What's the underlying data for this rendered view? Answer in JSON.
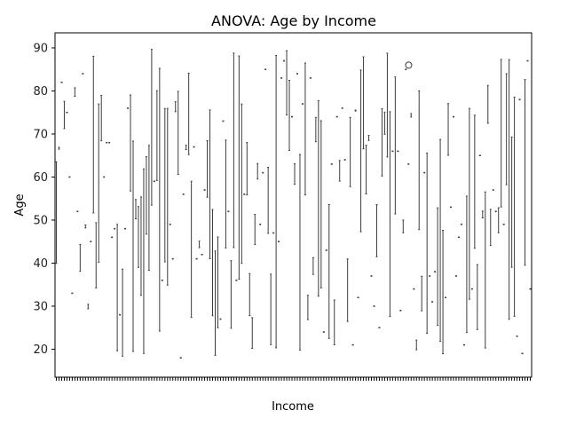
{
  "chart_data": {
    "type": "box",
    "title": "ANOVA: Age by Income",
    "xlabel": "Income",
    "ylabel": "Age",
    "ylim": [
      13.5,
      93.5
    ],
    "yticks": [
      20,
      30,
      40,
      50,
      60,
      70,
      80,
      90
    ],
    "category_count": 180,
    "x_tick_labels": "illegible (overlapping income values)",
    "box_color": "#3d3d3d",
    "outlier": {
      "y": 86
    }
  }
}
